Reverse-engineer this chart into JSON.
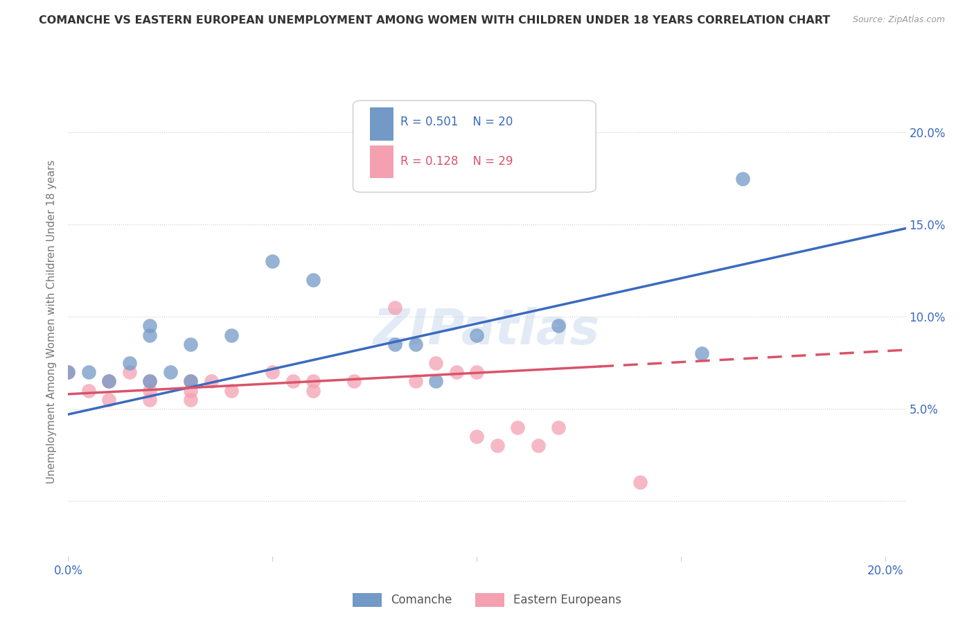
{
  "title": "COMANCHE VS EASTERN EUROPEAN UNEMPLOYMENT AMONG WOMEN WITH CHILDREN UNDER 18 YEARS CORRELATION CHART",
  "source": "Source: ZipAtlas.com",
  "ylabel": "Unemployment Among Women with Children Under 18 years",
  "x_ticks": [
    0.0,
    0.05,
    0.1,
    0.15,
    0.2
  ],
  "y_ticks": [
    0.0,
    0.05,
    0.1,
    0.15,
    0.2
  ],
  "xlim": [
    0.0,
    0.205
  ],
  "ylim": [
    -0.03,
    0.225
  ],
  "background_color": "#ffffff",
  "watermark": "ZIPatlas",
  "legend_R1": "R = 0.501",
  "legend_N1": "N = 20",
  "legend_R2": "R = 0.128",
  "legend_N2": "N = 29",
  "comanche_color": "#7399c6",
  "eastern_color": "#f4a0b0",
  "comanche_line_color": "#3a6abf",
  "eastern_line_color": "#d9536a",
  "comanche_scatter": [
    [
      0.0,
      0.07
    ],
    [
      0.005,
      0.07
    ],
    [
      0.01,
      0.065
    ],
    [
      0.015,
      0.075
    ],
    [
      0.02,
      0.065
    ],
    [
      0.02,
      0.095
    ],
    [
      0.02,
      0.09
    ],
    [
      0.025,
      0.07
    ],
    [
      0.03,
      0.085
    ],
    [
      0.03,
      0.065
    ],
    [
      0.04,
      0.09
    ],
    [
      0.05,
      0.13
    ],
    [
      0.06,
      0.12
    ],
    [
      0.08,
      0.085
    ],
    [
      0.085,
      0.085
    ],
    [
      0.09,
      0.065
    ],
    [
      0.1,
      0.09
    ],
    [
      0.12,
      0.095
    ],
    [
      0.155,
      0.08
    ],
    [
      0.165,
      0.175
    ]
  ],
  "eastern_scatter": [
    [
      0.0,
      0.07
    ],
    [
      0.005,
      0.06
    ],
    [
      0.01,
      0.065
    ],
    [
      0.01,
      0.055
    ],
    [
      0.015,
      0.07
    ],
    [
      0.02,
      0.065
    ],
    [
      0.02,
      0.06
    ],
    [
      0.02,
      0.055
    ],
    [
      0.03,
      0.065
    ],
    [
      0.03,
      0.06
    ],
    [
      0.03,
      0.055
    ],
    [
      0.035,
      0.065
    ],
    [
      0.04,
      0.06
    ],
    [
      0.05,
      0.07
    ],
    [
      0.055,
      0.065
    ],
    [
      0.06,
      0.065
    ],
    [
      0.06,
      0.06
    ],
    [
      0.07,
      0.065
    ],
    [
      0.08,
      0.105
    ],
    [
      0.085,
      0.065
    ],
    [
      0.09,
      0.075
    ],
    [
      0.095,
      0.07
    ],
    [
      0.1,
      0.07
    ],
    [
      0.1,
      0.035
    ],
    [
      0.105,
      0.03
    ],
    [
      0.11,
      0.04
    ],
    [
      0.115,
      0.03
    ],
    [
      0.12,
      0.04
    ],
    [
      0.14,
      0.01
    ]
  ],
  "comanche_line": [
    0.0,
    0.047,
    0.205,
    0.148
  ],
  "eastern_line_solid": [
    0.0,
    0.058,
    0.13,
    0.073
  ],
  "eastern_line_dashed": [
    0.13,
    0.073,
    0.205,
    0.082
  ],
  "grid_color": "#cccccc",
  "tick_color": "#3a6abf",
  "ylabel_color": "#777777",
  "title_color": "#333333",
  "source_color": "#999999"
}
